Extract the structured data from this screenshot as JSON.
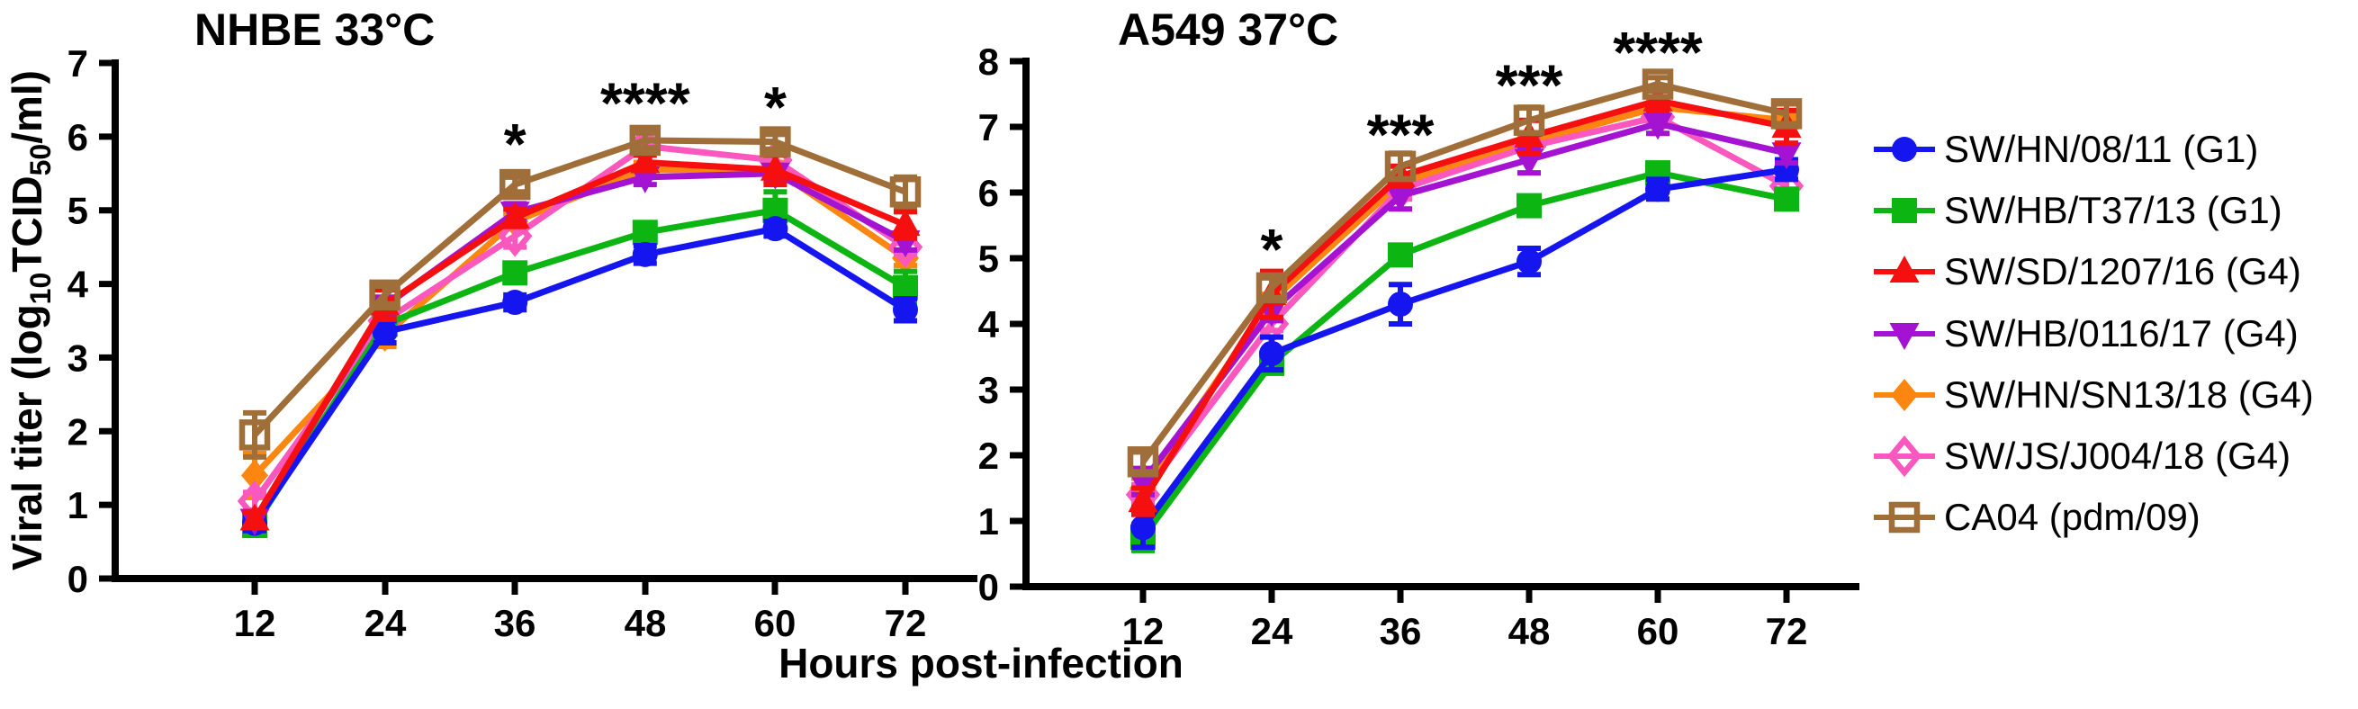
{
  "figure": {
    "xlabel": "Hours post-infection",
    "ylabel_segments": [
      {
        "text": "Viral titer (log",
        "sub": false
      },
      {
        "text": "10",
        "sub": true
      },
      {
        "text": "TCID",
        "sub": false
      },
      {
        "text": "50",
        "sub": true
      },
      {
        "text": "/ml)",
        "sub": false
      }
    ],
    "background": "#ffffff"
  },
  "legend": {
    "items": [
      {
        "label": "SW/HN/08/11 (G1)",
        "color": "#1515F0",
        "marker": "circle",
        "fill": "solid"
      },
      {
        "label": "SW/HB/T37/13 (G1)",
        "color": "#0CB512",
        "marker": "square",
        "fill": "solid"
      },
      {
        "label": "SW/SD/1207/16 (G4)",
        "color": "#F50F0F",
        "marker": "triangle-up",
        "fill": "solid"
      },
      {
        "label": "SW/HB/0116/17 (G4)",
        "color": "#A413D2",
        "marker": "triangle-down",
        "fill": "solid"
      },
      {
        "label": "SW/HN/SN13/18 (G4)",
        "color": "#FC860F",
        "marker": "diamond",
        "fill": "solid"
      },
      {
        "label": "SW/JS/J004/18 (G4)",
        "color": "#FA58BE",
        "marker": "diamond",
        "fill": "open"
      },
      {
        "label": "CA04 (pdm/09)",
        "color": "#A06E38",
        "marker": "square",
        "fill": "open"
      }
    ]
  },
  "chart_data": [
    {
      "type": "line",
      "title": "NHBE 33°C",
      "xlabel": "Hours post-infection",
      "ylabel": "Viral titer (log10 TCID50/ml)",
      "x": [
        12,
        24,
        36,
        48,
        60,
        72
      ],
      "ylim": [
        0,
        7
      ],
      "yticks": [
        0,
        1,
        2,
        3,
        4,
        5,
        6,
        7
      ],
      "grid": false,
      "series": [
        {
          "name": "SW/HN/08/11 (G1)",
          "values": [
            0.75,
            3.35,
            3.75,
            4.4,
            4.75,
            3.65
          ],
          "errors": [
            0.1,
            0.15,
            0.1,
            0.12,
            0.1,
            0.15
          ]
        },
        {
          "name": "SW/HB/T37/13 (G1)",
          "values": [
            0.72,
            3.45,
            4.15,
            4.7,
            5.0,
            3.95
          ],
          "errors": [
            0.1,
            0.1,
            0.1,
            0.1,
            0.25,
            0.22
          ]
        },
        {
          "name": "SW/SD/1207/16 (G4)",
          "values": [
            0.8,
            3.72,
            4.9,
            5.65,
            5.55,
            4.8
          ],
          "errors": [
            0.1,
            0.2,
            0.12,
            0.1,
            0.2,
            0.18
          ]
        },
        {
          "name": "SW/HB/0116/17 (G4)",
          "values": [
            0.8,
            3.7,
            4.97,
            5.45,
            5.5,
            4.58
          ],
          "errors": [
            0.1,
            0.12,
            0.12,
            0.1,
            0.1,
            0.12
          ]
        },
        {
          "name": "SW/HN/SN13/18 (G4)",
          "values": [
            1.4,
            3.3,
            4.85,
            5.55,
            5.55,
            4.35
          ],
          "errors": [
            0.3,
            0.15,
            0.1,
            0.1,
            0.1,
            0.1
          ]
        },
        {
          "name": "SW/JS/J004/18 (G4)",
          "values": [
            1.05,
            3.5,
            4.65,
            5.87,
            5.68,
            4.5
          ],
          "errors": [
            0.12,
            0.1,
            0.15,
            0.1,
            0.1,
            0.1
          ]
        },
        {
          "name": "CA04 (pdm/09)",
          "values": [
            1.95,
            3.85,
            5.35,
            5.95,
            5.93,
            5.25
          ],
          "errors": [
            0.3,
            0.12,
            0.1,
            0.1,
            0.1,
            0.2
          ]
        }
      ],
      "annotations": [
        {
          "x": 36,
          "y": 6.05,
          "text": "*"
        },
        {
          "x": 48,
          "y": 6.6,
          "text": "****"
        },
        {
          "x": 60,
          "y": 6.55,
          "text": "*"
        }
      ]
    },
    {
      "type": "line",
      "title": "A549 37°C",
      "xlabel": "Hours post-infection",
      "ylabel": "Viral titer (log10 TCID50/ml)",
      "x": [
        12,
        24,
        36,
        48,
        60,
        72
      ],
      "ylim": [
        0,
        8
      ],
      "yticks": [
        0,
        1,
        2,
        3,
        4,
        5,
        6,
        7,
        8
      ],
      "grid": false,
      "series": [
        {
          "name": "SW/HN/08/11 (G1)",
          "values": [
            0.9,
            3.55,
            4.3,
            4.95,
            6.05,
            6.35
          ],
          "errors": [
            0.3,
            0.25,
            0.3,
            0.2,
            0.15,
            0.15
          ]
        },
        {
          "name": "SW/HB/T37/13 (G1)",
          "values": [
            0.75,
            3.4,
            5.05,
            5.8,
            6.3,
            5.9
          ],
          "errors": [
            0.2,
            0.15,
            0.1,
            0.12,
            0.1,
            0.1
          ]
        },
        {
          "name": "SW/SD/1207/16 (G4)",
          "values": [
            1.3,
            4.45,
            6.25,
            6.85,
            7.4,
            7.0
          ],
          "errors": [
            0.2,
            0.35,
            0.15,
            0.25,
            0.15,
            0.25
          ]
        },
        {
          "name": "SW/HB/0116/17 (G4)",
          "values": [
            1.6,
            4.2,
            5.95,
            6.5,
            7.05,
            6.6
          ],
          "errors": [
            0.2,
            0.15,
            0.2,
            0.2,
            0.15,
            0.15
          ]
        },
        {
          "name": "SW/HN/SN13/18 (G4)",
          "values": [
            1.5,
            4.35,
            6.15,
            6.75,
            7.3,
            7.1
          ],
          "errors": [
            0.15,
            0.1,
            0.1,
            0.1,
            0.1,
            0.1
          ]
        },
        {
          "name": "SW/JS/J004/18 (G4)",
          "values": [
            1.4,
            4.0,
            6.05,
            6.7,
            7.15,
            6.1
          ],
          "errors": [
            0.15,
            0.1,
            0.15,
            0.1,
            0.1,
            0.15
          ]
        },
        {
          "name": "CA04 (pdm/09)",
          "values": [
            1.9,
            4.55,
            6.4,
            7.1,
            7.65,
            7.2
          ],
          "errors": [
            0.15,
            0.15,
            0.2,
            0.2,
            0.1,
            0.15
          ]
        }
      ],
      "annotations": [
        {
          "x": 24,
          "y": 5.3,
          "text": "*"
        },
        {
          "x": 36,
          "y": 7.05,
          "text": "***"
        },
        {
          "x": 48,
          "y": 7.8,
          "text": "***"
        },
        {
          "x": 60,
          "y": 8.3,
          "text": "****"
        }
      ]
    }
  ],
  "draw_order": [
    4,
    5,
    1,
    0,
    3,
    2,
    6
  ]
}
